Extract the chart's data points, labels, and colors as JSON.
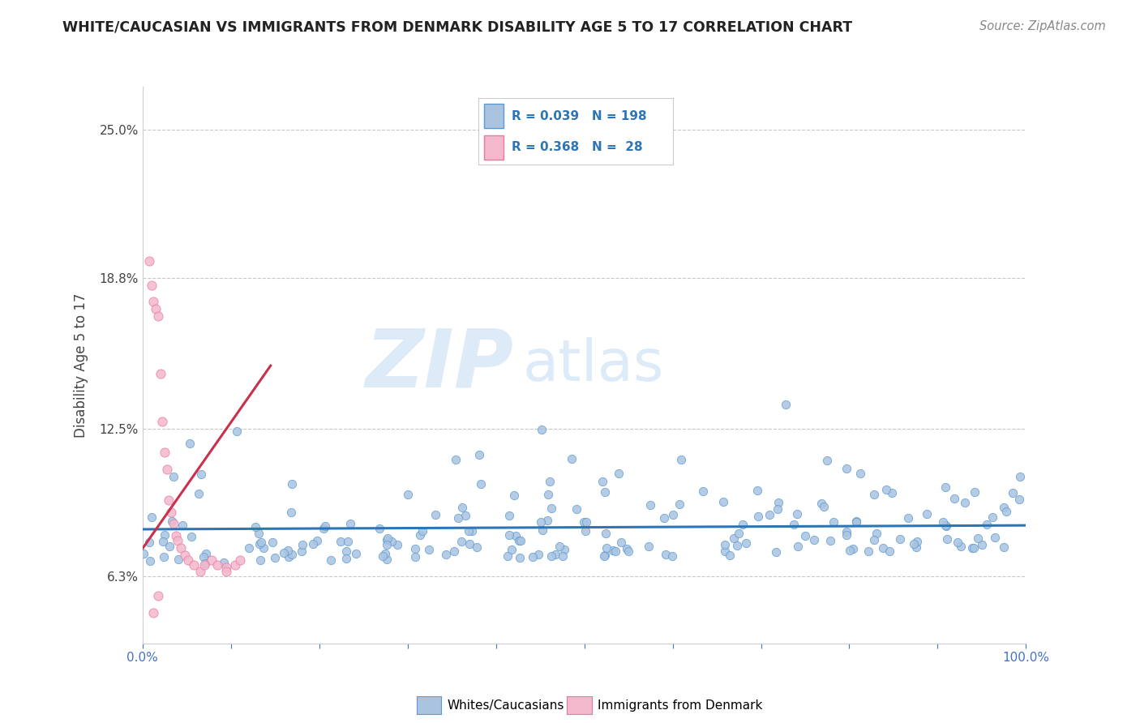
{
  "title": "WHITE/CAUCASIAN VS IMMIGRANTS FROM DENMARK DISABILITY AGE 5 TO 17 CORRELATION CHART",
  "source": "Source: ZipAtlas.com",
  "ylabel": "Disability Age 5 to 17",
  "xlim": [
    0.0,
    1.0
  ],
  "ylim": [
    0.035,
    0.268
  ],
  "yticks": [
    0.063,
    0.125,
    0.188,
    0.25
  ],
  "ytick_labels": [
    "6.3%",
    "12.5%",
    "18.8%",
    "25.0%"
  ],
  "blue_scatter_color": "#aac4e0",
  "blue_edge_color": "#5b9bd5",
  "pink_scatter_color": "#f4b8cc",
  "pink_edge_color": "#e87aa0",
  "trend_blue_color": "#2e75b6",
  "trend_pink_color": "#c9304a",
  "dashed_line_color": "#c8c8c8",
  "grid_color": "#e0e0e0",
  "title_color": "#222222",
  "source_color": "#888888",
  "ylabel_color": "#444444",
  "tick_label_color_y": "#444444",
  "tick_label_color_x": "#4472c4",
  "legend_label_blue": "Whites/Caucasians",
  "legend_label_pink": "Immigrants from Denmark",
  "watermark_zip_color": "#d8e8f5",
  "watermark_atlas_color": "#c5d8ee",
  "blue_R": 0.039,
  "blue_N": 198,
  "pink_R": 0.368,
  "pink_N": 28
}
